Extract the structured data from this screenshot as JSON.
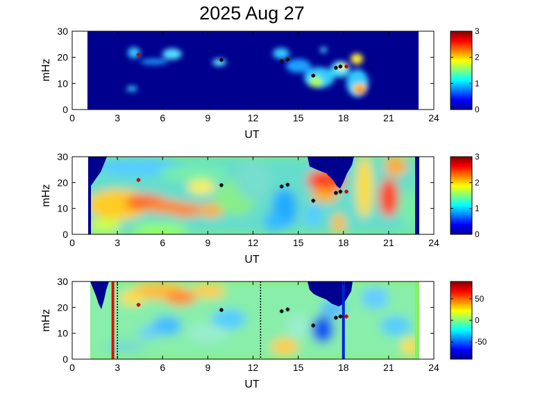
{
  "title": "2025 Aug 27",
  "colors": {
    "background_navy": "#000d8f",
    "frame": "#000000",
    "marker": "#000000",
    "marker_red": "#cc0000",
    "line_red": "#dd1100",
    "line_blue": "#0022dd",
    "dotted": "#000000"
  },
  "chart_data": [
    {
      "type": "heatmap",
      "panel": "top",
      "title": "2025 Aug 27",
      "xlabel": "UT",
      "ylabel": "mHz",
      "xlim": [
        0,
        24
      ],
      "ylim": [
        0,
        30
      ],
      "xticks": [
        "0",
        "3",
        "6",
        "9",
        "12",
        "15",
        "18",
        "21",
        "24"
      ],
      "yticks": [
        "0",
        "10",
        "20",
        "30"
      ],
      "colorbar": {
        "range": [
          0,
          3
        ],
        "ticks": [
          "0",
          "1",
          "2",
          "3"
        ],
        "colormap": "jet"
      },
      "data_time_range": [
        1,
        23
      ],
      "grid": false,
      "markers": [
        {
          "t": 4.4,
          "f": 21
        },
        {
          "t": 9.9,
          "f": 19
        },
        {
          "t": 13.9,
          "f": 18.5
        },
        {
          "t": 14.3,
          "f": 19.2
        },
        {
          "t": 16.0,
          "f": 13
        },
        {
          "t": 17.5,
          "f": 16
        },
        {
          "t": 17.8,
          "f": 16.5
        },
        {
          "t": 18.2,
          "f": 16.5
        }
      ]
    },
    {
      "type": "heatmap",
      "panel": "middle",
      "xlabel": "UT",
      "ylabel": "mHz",
      "xlim": [
        0,
        24
      ],
      "ylim": [
        0,
        30
      ],
      "xticks": [
        "0",
        "3",
        "6",
        "9",
        "12",
        "15",
        "18",
        "21",
        "24"
      ],
      "yticks": [
        "0",
        "10",
        "20",
        "30"
      ],
      "colorbar": {
        "range": [
          0,
          3
        ],
        "ticks": [
          "0",
          "1",
          "2",
          "3"
        ],
        "colormap": "jet"
      },
      "data_time_range": [
        1,
        23
      ],
      "grid": false,
      "markers": [
        {
          "t": 4.4,
          "f": 21
        },
        {
          "t": 9.9,
          "f": 19
        },
        {
          "t": 13.9,
          "f": 18.5
        },
        {
          "t": 14.3,
          "f": 19.2
        },
        {
          "t": 16.0,
          "f": 13
        },
        {
          "t": 17.5,
          "f": 16
        },
        {
          "t": 17.8,
          "f": 16.5
        },
        {
          "t": 18.2,
          "f": 16.5
        }
      ]
    },
    {
      "type": "heatmap",
      "panel": "bottom",
      "xlabel": "UT",
      "ylabel": "mHz",
      "xlim": [
        0,
        24
      ],
      "ylim": [
        0,
        30
      ],
      "xticks": [
        "0",
        "3",
        "6",
        "9",
        "12",
        "15",
        "18",
        "21",
        "24"
      ],
      "yticks": [
        "0",
        "10",
        "20",
        "30"
      ],
      "colorbar": {
        "range": [
          -90,
          90
        ],
        "ticks": [
          "-50",
          "0",
          "50"
        ],
        "colormap": "jet"
      },
      "data_time_range": [
        1,
        23
      ],
      "grid": false,
      "vertical_lines": [
        {
          "t": 2.7,
          "color": "red",
          "style": "solid"
        },
        {
          "t": 3.0,
          "color": "black",
          "style": "dotted"
        },
        {
          "t": 12.5,
          "color": "black",
          "style": "dotted"
        },
        {
          "t": 18.0,
          "color": "blue",
          "style": "solid"
        }
      ],
      "markers": [
        {
          "t": 4.4,
          "f": 21
        },
        {
          "t": 9.9,
          "f": 19
        },
        {
          "t": 13.9,
          "f": 18.5
        },
        {
          "t": 14.3,
          "f": 19.2
        },
        {
          "t": 16.0,
          "f": 13
        },
        {
          "t": 17.5,
          "f": 16
        },
        {
          "t": 17.8,
          "f": 16.5
        },
        {
          "t": 18.2,
          "f": 16.5
        }
      ]
    }
  ]
}
